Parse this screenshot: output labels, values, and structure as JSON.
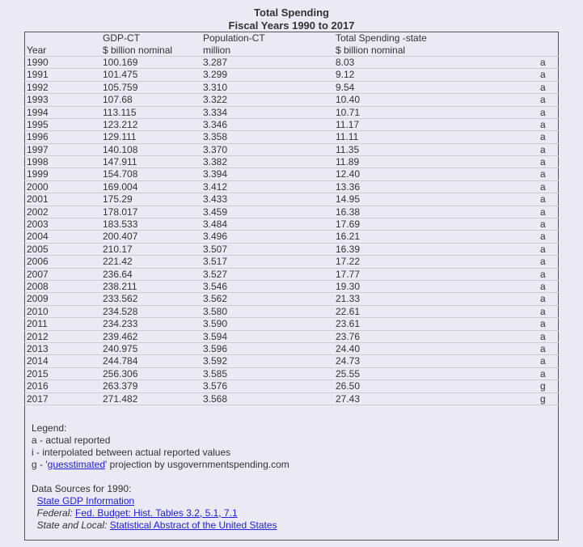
{
  "title": "Total Spending",
  "subtitle": "Fiscal Years 1990 to 2017",
  "columns": {
    "year": "Year",
    "gdp_line1": "GDP-CT",
    "gdp_line2": "$ billion nominal",
    "pop_line1": "Population-CT",
    "pop_line2": "million",
    "spend_line1": "Total Spending -state",
    "spend_line2": "$ billion nominal"
  },
  "rows": [
    {
      "year": "1990",
      "gdp": "100.169",
      "pop": "3.287",
      "spend": "8.03",
      "flag": "a"
    },
    {
      "year": "1991",
      "gdp": "101.475",
      "pop": "3.299",
      "spend": "9.12",
      "flag": "a"
    },
    {
      "year": "1992",
      "gdp": "105.759",
      "pop": "3.310",
      "spend": "9.54",
      "flag": "a"
    },
    {
      "year": "1993",
      "gdp": "107.68",
      "pop": "3.322",
      "spend": "10.40",
      "flag": "a"
    },
    {
      "year": "1994",
      "gdp": "113.115",
      "pop": "3.334",
      "spend": "10.71",
      "flag": "a"
    },
    {
      "year": "1995",
      "gdp": "123.212",
      "pop": "3.346",
      "spend": "11.17",
      "flag": "a"
    },
    {
      "year": "1996",
      "gdp": "129.111",
      "pop": "3.358",
      "spend": "11.11",
      "flag": "a"
    },
    {
      "year": "1997",
      "gdp": "140.108",
      "pop": "3.370",
      "spend": "11.35",
      "flag": "a"
    },
    {
      "year": "1998",
      "gdp": "147.911",
      "pop": "3.382",
      "spend": "11.89",
      "flag": "a"
    },
    {
      "year": "1999",
      "gdp": "154.708",
      "pop": "3.394",
      "spend": "12.40",
      "flag": "a"
    },
    {
      "year": "2000",
      "gdp": "169.004",
      "pop": "3.412",
      "spend": "13.36",
      "flag": "a"
    },
    {
      "year": "2001",
      "gdp": "175.29",
      "pop": "3.433",
      "spend": "14.95",
      "flag": "a"
    },
    {
      "year": "2002",
      "gdp": "178.017",
      "pop": "3.459",
      "spend": "16.38",
      "flag": "a"
    },
    {
      "year": "2003",
      "gdp": "183.533",
      "pop": "3.484",
      "spend": "17.69",
      "flag": "a"
    },
    {
      "year": "2004",
      "gdp": "200.407",
      "pop": "3.496",
      "spend": "16.21",
      "flag": "a"
    },
    {
      "year": "2005",
      "gdp": "210.17",
      "pop": "3.507",
      "spend": "16.39",
      "flag": "a"
    },
    {
      "year": "2006",
      "gdp": "221.42",
      "pop": "3.517",
      "spend": "17.22",
      "flag": "a"
    },
    {
      "year": "2007",
      "gdp": "236.64",
      "pop": "3.527",
      "spend": "17.77",
      "flag": "a"
    },
    {
      "year": "2008",
      "gdp": "238.211",
      "pop": "3.546",
      "spend": "19.30",
      "flag": "a"
    },
    {
      "year": "2009",
      "gdp": "233.562",
      "pop": "3.562",
      "spend": "21.33",
      "flag": "a"
    },
    {
      "year": "2010",
      "gdp": "234.528",
      "pop": "3.580",
      "spend": "22.61",
      "flag": "a"
    },
    {
      "year": "2011",
      "gdp": "234.233",
      "pop": "3.590",
      "spend": "23.61",
      "flag": "a"
    },
    {
      "year": "2012",
      "gdp": "239.462",
      "pop": "3.594",
      "spend": "23.76",
      "flag": "a"
    },
    {
      "year": "2013",
      "gdp": "240.975",
      "pop": "3.596",
      "spend": "24.40",
      "flag": "a"
    },
    {
      "year": "2014",
      "gdp": "244.784",
      "pop": "3.592",
      "spend": "24.73",
      "flag": "a"
    },
    {
      "year": "2015",
      "gdp": "256.306",
      "pop": "3.585",
      "spend": "25.55",
      "flag": "a"
    },
    {
      "year": "2016",
      "gdp": "263.379",
      "pop": "3.576",
      "spend": "26.50",
      "flag": "g"
    },
    {
      "year": "2017",
      "gdp": "271.482",
      "pop": "3.568",
      "spend": "27.43",
      "flag": "g"
    }
  ],
  "legend": {
    "heading": "Legend:",
    "a": "a - actual reported",
    "i": "i - interpolated between actual reported values",
    "g_prefix": "g - '",
    "g_link": "guesstimated",
    "g_suffix": "' projection by usgovernmentspending.com",
    "sources_heading": "Data Sources for 1990:",
    "state_gdp": "State GDP Information",
    "federal_label": "Federal:",
    "federal_link": "Fed. Budget: Hist. Tables 3.2, 5.1, 7.1",
    "state_local_label": "State and Local:",
    "state_local_link": "Statistical Abstract of the United States"
  }
}
